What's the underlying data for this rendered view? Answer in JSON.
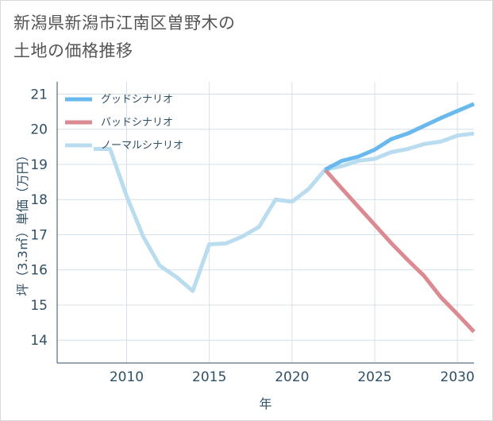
{
  "page": {
    "title": "新潟県新潟市江南区曽野木の\n土地の価格推移"
  },
  "chart_data": {
    "type": "line",
    "title": "新潟県新潟市江南区曽野木の土地の価格推移",
    "xlabel": "年",
    "ylabel": "坪（3.3㎡）単価（万円）",
    "xlim": [
      2005.8,
      2031
    ],
    "ylim": [
      13.35,
      21.35
    ],
    "x_ticks": [
      2010,
      2015,
      2020,
      2025,
      2030
    ],
    "y_ticks": [
      14,
      15,
      16,
      17,
      18,
      19,
      20,
      21
    ],
    "grid": true,
    "legend_position": "top-left",
    "series": [
      {
        "name": "グッドシナリオ",
        "color": "#6ab9ee",
        "x": [
          2022,
          2023,
          2024,
          2025,
          2026,
          2027,
          2028,
          2029,
          2030,
          2031
        ],
        "values": [
          18.85,
          19.1,
          19.22,
          19.42,
          19.72,
          19.88,
          20.1,
          20.32,
          20.52,
          20.72
        ]
      },
      {
        "name": "バッドシナリオ",
        "color": "#dc8a91",
        "x": [
          2022,
          2023,
          2024,
          2025,
          2026,
          2027,
          2028,
          2029,
          2030,
          2031
        ],
        "values": [
          18.85,
          18.32,
          17.8,
          17.28,
          16.76,
          16.28,
          15.82,
          15.22,
          14.74,
          14.24
        ]
      },
      {
        "name": "ノーマルシナリオ",
        "color": "#b9dcee",
        "x": [
          2008,
          2009,
          2010,
          2011,
          2012,
          2013,
          2014,
          2015,
          2016,
          2017,
          2018,
          2019,
          2020,
          2021,
          2022,
          2023,
          2024,
          2025,
          2026,
          2027,
          2028,
          2029,
          2030,
          2031
        ],
        "values": [
          19.44,
          19.44,
          18.1,
          16.95,
          16.12,
          15.8,
          15.4,
          16.73,
          16.75,
          16.95,
          17.22,
          18.0,
          17.94,
          18.3,
          18.85,
          18.95,
          19.1,
          19.16,
          19.35,
          19.44,
          19.58,
          19.65,
          19.82,
          19.88
        ]
      }
    ]
  }
}
